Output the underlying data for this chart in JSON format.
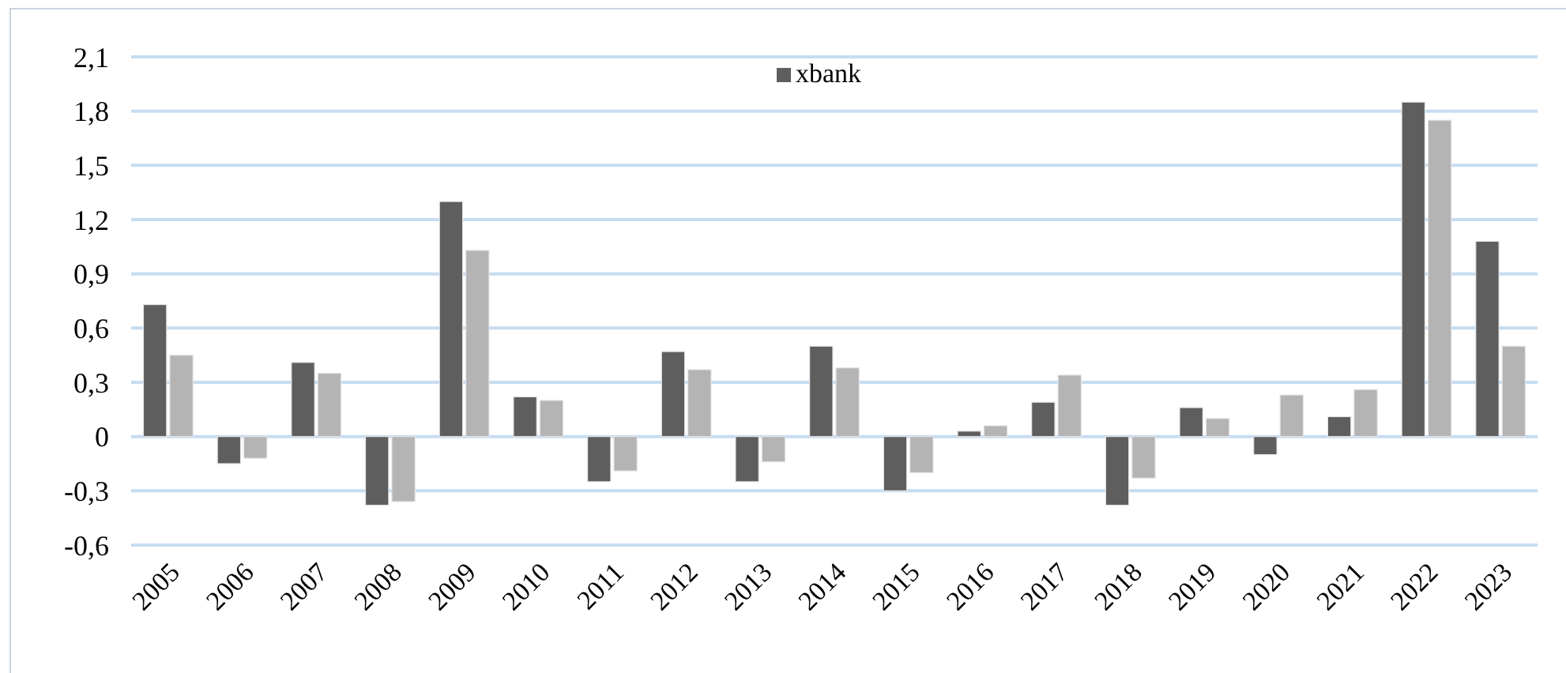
{
  "chart_data": {
    "type": "bar",
    "categories": [
      "2005",
      "2006",
      "2007",
      "2008",
      "2009",
      "2010",
      "2011",
      "2012",
      "2013",
      "2014",
      "2015",
      "2016",
      "2017",
      "2018",
      "2019",
      "2020",
      "2021",
      "2022",
      "2023"
    ],
    "series": [
      {
        "name": "xbank",
        "color": "#5e5e5e",
        "values": [
          0.73,
          -0.15,
          0.41,
          -0.38,
          1.3,
          0.22,
          -0.25,
          0.47,
          -0.25,
          0.5,
          -0.3,
          0.03,
          0.19,
          -0.38,
          0.16,
          -0.1,
          0.11,
          1.85,
          1.08
        ]
      },
      {
        "color": "#b4b4b4",
        "values": [
          0.45,
          -0.12,
          0.35,
          -0.36,
          1.03,
          0.2,
          -0.19,
          0.37,
          -0.14,
          0.38,
          -0.2,
          0.06,
          0.34,
          -0.23,
          0.1,
          0.23,
          0.26,
          1.75,
          0.5
        ]
      }
    ],
    "ylim": [
      -0.6,
      2.1
    ],
    "yticks": [
      {
        "value": -0.6,
        "label": "-0,6"
      },
      {
        "value": -0.3,
        "label": "-0,3"
      },
      0,
      {
        "value": 0.3,
        "label": "0,3"
      },
      {
        "value": 0.6,
        "label": "0,6"
      },
      {
        "value": 0.9,
        "label": "0,9"
      },
      {
        "value": 1.2,
        "label": "1,2"
      },
      {
        "value": 1.5,
        "label": "1,5"
      },
      {
        "value": 1.8,
        "label": "1,8"
      },
      {
        "value": 2.1,
        "label": "2,1"
      }
    ],
    "grid": "y",
    "legend": "top"
  }
}
